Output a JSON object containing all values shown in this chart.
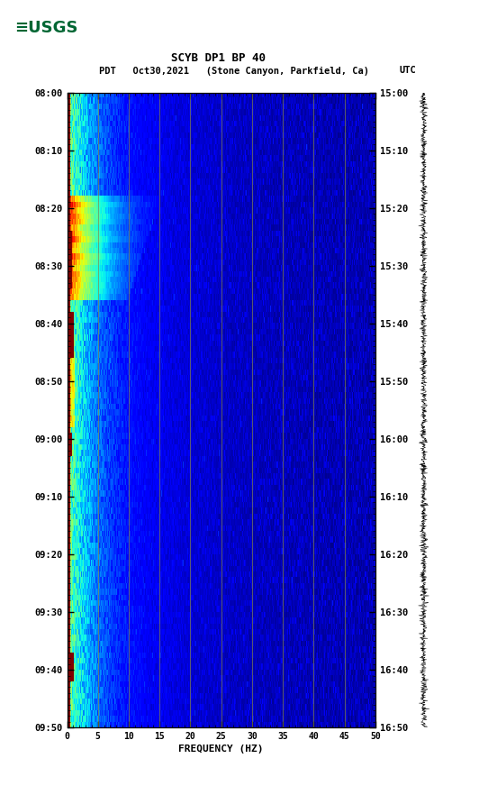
{
  "title_line1": "SCYB DP1 BP 40",
  "title_line2_left": "PDT   Oct30,2021   (Stone Canyon, Parkfield, Ca)",
  "title_line2_right": "UTC",
  "xlabel": "FREQUENCY (HZ)",
  "freq_min": 0,
  "freq_max": 50,
  "left_time_labels": [
    "08:00",
    "08:10",
    "08:20",
    "08:30",
    "08:40",
    "08:50",
    "09:00",
    "09:10",
    "09:20",
    "09:30",
    "09:40",
    "09:50"
  ],
  "right_time_labels": [
    "15:00",
    "15:10",
    "15:20",
    "15:30",
    "15:40",
    "15:50",
    "16:00",
    "16:10",
    "16:20",
    "16:30",
    "16:40",
    "16:50"
  ],
  "freq_ticks": [
    0,
    5,
    10,
    15,
    20,
    25,
    30,
    35,
    40,
    45,
    50
  ],
  "grid_freqs": [
    5,
    10,
    15,
    20,
    25,
    30,
    35,
    40,
    45
  ],
  "fig_bg": "#ffffff",
  "usgs_green": "#006633",
  "tick_color": "#000000",
  "grid_color": "#888844",
  "n_time": 110,
  "n_freq": 500
}
